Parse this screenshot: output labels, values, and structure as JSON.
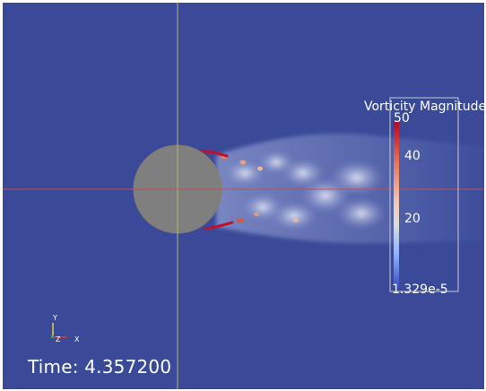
{
  "time": {
    "label": "Time: 4.357200"
  },
  "colorbar": {
    "title": "Vorticity Magnitude",
    "ticks": [
      "50",
      "40",
      "20",
      "1.329e-5"
    ],
    "colors": {
      "high": "#b40426",
      "mid": "#dddddd",
      "low": "#3b4cc0"
    }
  },
  "axes": {
    "y_label": "Y",
    "z_label": "Z",
    "x_label": "X"
  },
  "colors": {
    "background": "#3a4a98",
    "cylinder": "#7f7f7f",
    "crosshair_vertical": "#b8b878",
    "crosshair_horizontal": "#c05050"
  }
}
